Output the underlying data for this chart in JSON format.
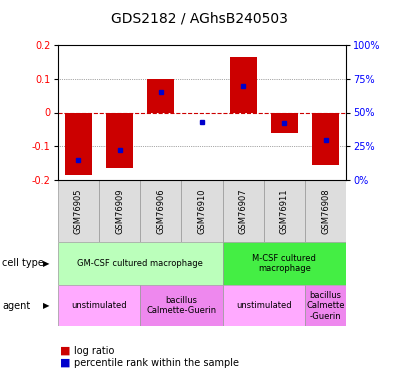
{
  "title": "GDS2182 / AGhsB240503",
  "samples": [
    "GSM76905",
    "GSM76909",
    "GSM76906",
    "GSM76910",
    "GSM76907",
    "GSM76911",
    "GSM76908"
  ],
  "log_ratios": [
    -0.185,
    -0.165,
    0.1,
    0.0,
    0.165,
    -0.06,
    -0.155
  ],
  "percentile_ranks_pct": [
    15,
    22,
    65,
    43,
    70,
    42,
    30
  ],
  "ylim": [
    -0.2,
    0.2
  ],
  "yticks": [
    -0.2,
    -0.1,
    0.0,
    0.1,
    0.2
  ],
  "ytick_labels_left": [
    "-0.2",
    "-0.1",
    "0",
    "0.1",
    "0.2"
  ],
  "ytick_labels_right": [
    "0%",
    "25%",
    "50%",
    "75%",
    "100%"
  ],
  "bar_color": "#cc0000",
  "dot_color": "#0000cc",
  "cell_type_groups": [
    {
      "label": "GM-CSF cultured macrophage",
      "start": 0,
      "end": 4,
      "color": "#bbffbb"
    },
    {
      "label": "M-CSF cultured\nmacrophage",
      "start": 4,
      "end": 7,
      "color": "#44ee44"
    }
  ],
  "agent_groups": [
    {
      "label": "unstimulated",
      "start": 0,
      "end": 2,
      "color": "#ffaaff"
    },
    {
      "label": "bacillus\nCalmette-Guerin",
      "start": 2,
      "end": 4,
      "color": "#ee88ee"
    },
    {
      "label": "unstimulated",
      "start": 4,
      "end": 6,
      "color": "#ffaaff"
    },
    {
      "label": "bacillus\nCalmette\n-Guerin",
      "start": 6,
      "end": 7,
      "color": "#ee88ee"
    }
  ],
  "sample_bg_color": "#dddddd",
  "sample_border_color": "#999999",
  "zero_line_color": "#cc0000",
  "grid_line_color": "#555555",
  "legend_log_ratio_color": "#cc0000",
  "legend_percentile_color": "#0000cc",
  "title_fontsize": 10,
  "tick_fontsize": 7,
  "sample_fontsize": 6,
  "cell_fontsize": 6,
  "agent_fontsize": 6,
  "label_fontsize": 7,
  "legend_fontsize": 7
}
